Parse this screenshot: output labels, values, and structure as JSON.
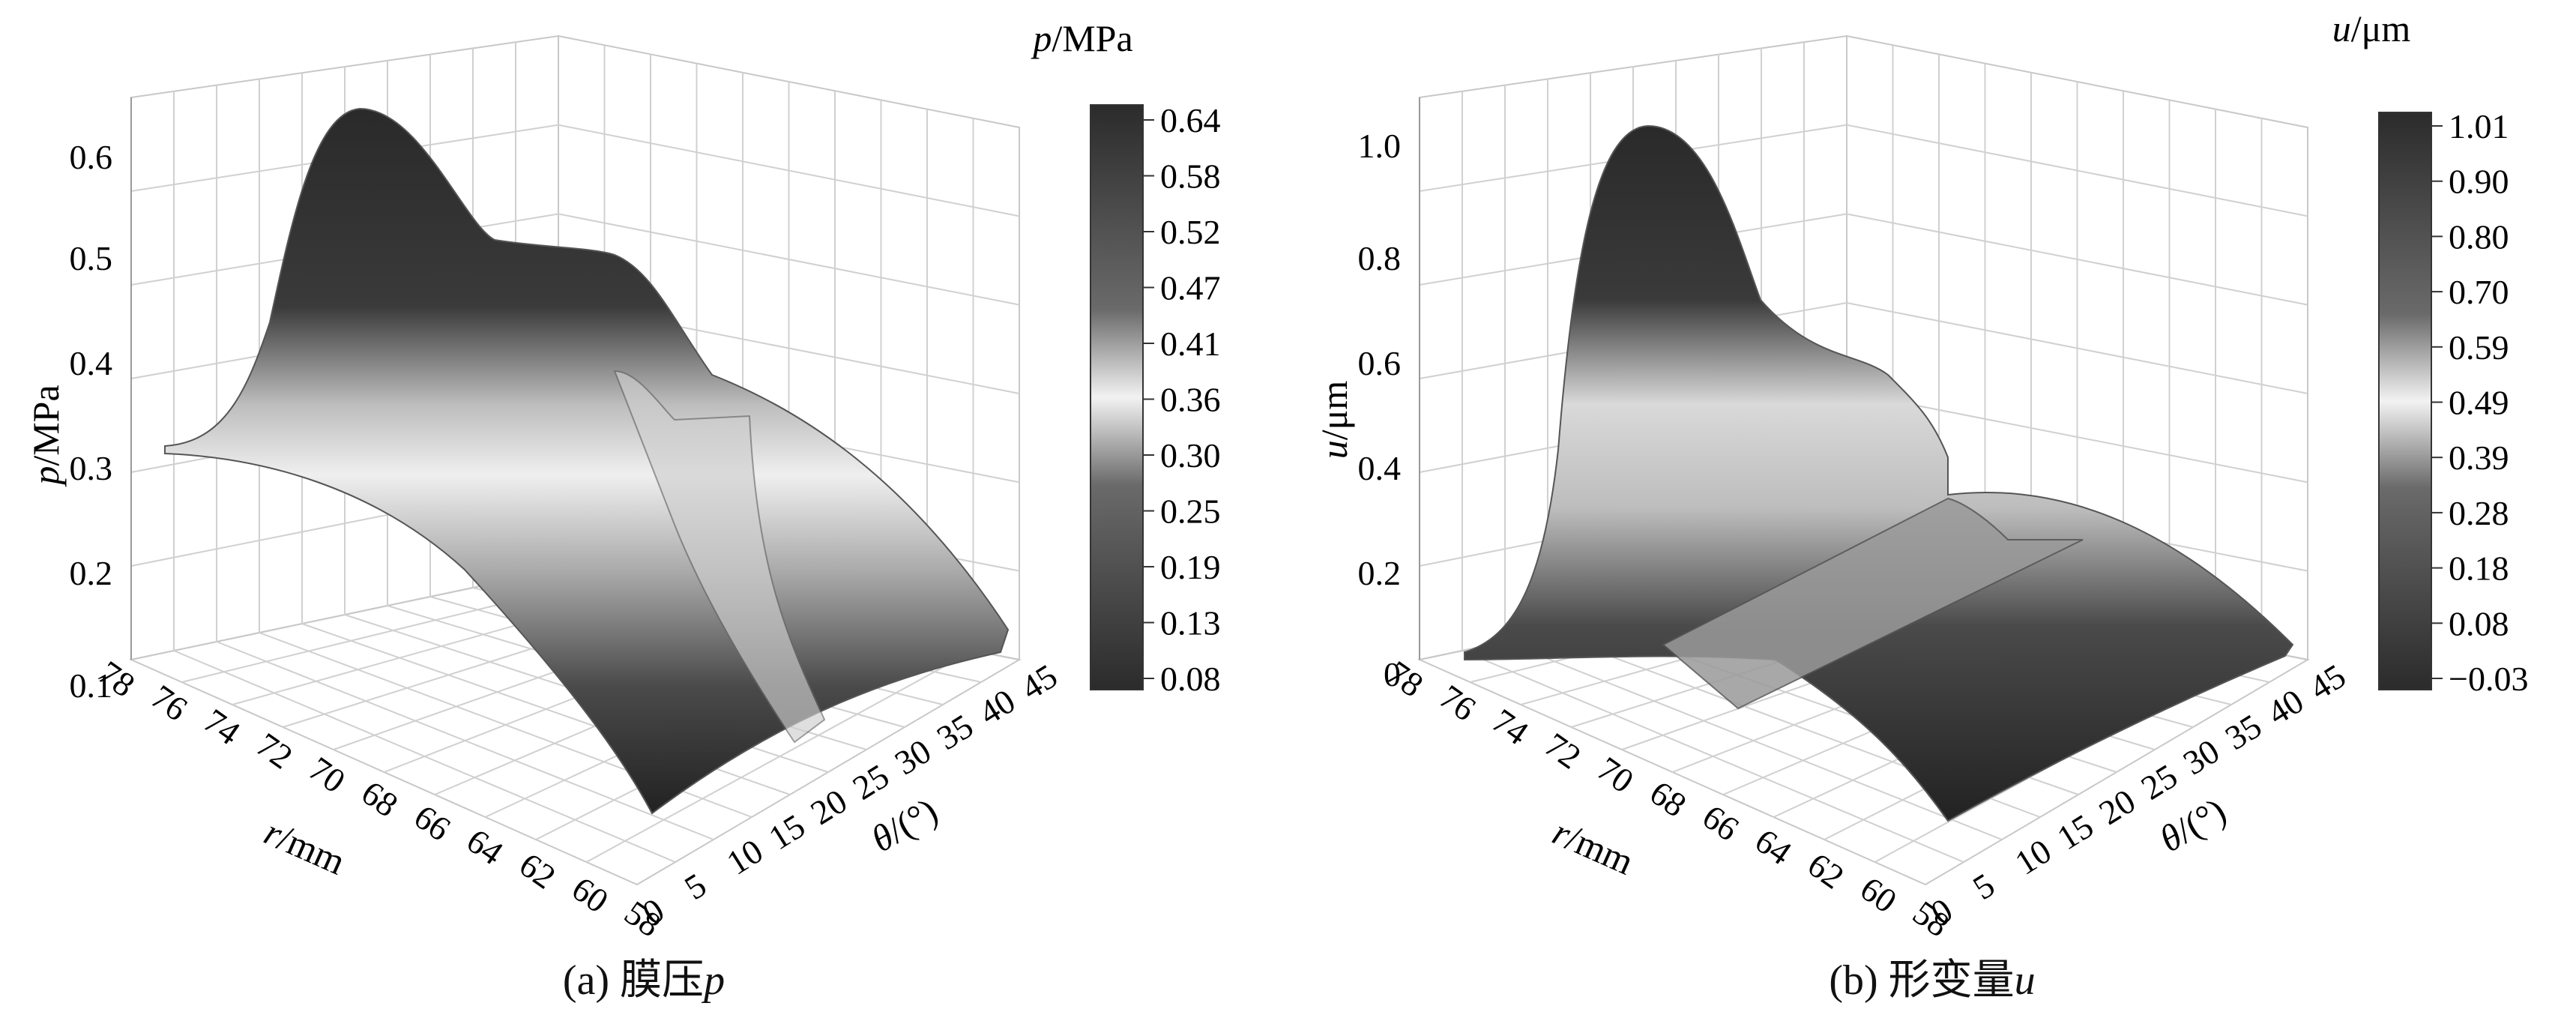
{
  "panels": [
    {
      "caption_prefix": "(a) 膜压",
      "caption_var": "p",
      "colorbar_title_var": "p",
      "colorbar_title_unit": "/MPa",
      "zlabel_var": "p",
      "zlabel_unit": "/MPa",
      "zticks": [
        "0.1",
        "0.2",
        "0.3",
        "0.4",
        "0.5",
        "0.6"
      ],
      "colorbar_ticks": [
        "0.64",
        "0.58",
        "0.52",
        "0.47",
        "0.41",
        "0.36",
        "0.30",
        "0.25",
        "0.19",
        "0.13",
        "0.08"
      ]
    },
    {
      "caption_prefix": "(b) 形变量",
      "caption_var": "u",
      "colorbar_title_var": "u",
      "colorbar_title_unit": "/μm",
      "zlabel_var": "u",
      "zlabel_unit": "/μm",
      "zticks": [
        "0",
        "0.2",
        "0.4",
        "0.6",
        "0.8",
        "1.0"
      ],
      "colorbar_ticks": [
        "1.01",
        "0.90",
        "0.80",
        "0.70",
        "0.59",
        "0.49",
        "0.39",
        "0.28",
        "0.18",
        "0.08",
        "−0.03"
      ]
    }
  ],
  "shared": {
    "rlabel_var": "r",
    "rlabel_unit": "/mm",
    "thetalabel_var": "θ",
    "thetalabel_unit": "/(°)",
    "rticks": [
      "78",
      "76",
      "74",
      "72",
      "70",
      "68",
      "66",
      "64",
      "62",
      "60",
      "58"
    ],
    "thetaticks": [
      "0",
      "5",
      "10",
      "15",
      "20",
      "25",
      "30",
      "35",
      "40",
      "45"
    ]
  },
  "chart_data": [
    {
      "type": "surface3d",
      "title": "(a) 膜压p",
      "xlabel": "r/mm",
      "ylabel": "θ/(°)",
      "zlabel": "p/MPa",
      "x_range": [
        58,
        78
      ],
      "y_range": [
        0,
        45
      ],
      "z_range": [
        0.08,
        0.64
      ],
      "colorbar_range": [
        0.08,
        0.64
      ],
      "colormap": "black-white-black diverging",
      "r": [
        78,
        76,
        74,
        72,
        70,
        68,
        66,
        64,
        62,
        60,
        58
      ],
      "theta": [
        0,
        5,
        10,
        15,
        20,
        25,
        30,
        35,
        40,
        45
      ],
      "notes": "peak ~0.64 MPa near r=66–70 mm, θ≈40–45°; pressure falls toward r=58 and r=78; step near θ≈22°"
    },
    {
      "type": "surface3d",
      "title": "(b) 形变量u",
      "xlabel": "r/mm",
      "ylabel": "θ/(°)",
      "zlabel": "u/μm",
      "x_range": [
        58,
        78
      ],
      "y_range": [
        0,
        45
      ],
      "z_range": [
        -0.03,
        1.01
      ],
      "colorbar_range": [
        -0.03,
        1.01
      ],
      "colormap": "black-white-black diverging",
      "r": [
        78,
        76,
        74,
        72,
        70,
        68,
        66,
        64,
        62,
        60,
        58
      ],
      "theta": [
        0,
        5,
        10,
        15,
        20,
        25,
        30,
        35,
        40,
        45
      ],
      "notes": "peak ~1.01 μm near r=66–70 mm, θ≈40–45°; near-zero flat region for θ<22°"
    }
  ]
}
